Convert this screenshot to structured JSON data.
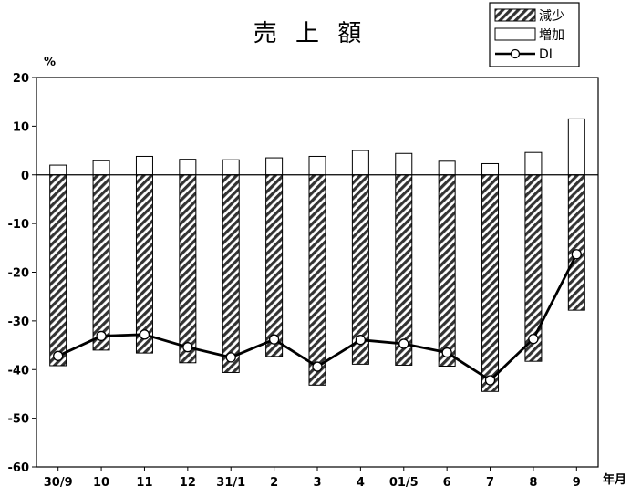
{
  "chart_data": {
    "type": "bar",
    "title": "売 上 額",
    "ylabel": "%",
    "xlabel": "年月",
    "ylim": [
      -60,
      20
    ],
    "yticks": [
      20,
      10,
      0,
      -10,
      -20,
      -30,
      -40,
      -50,
      -60
    ],
    "grid": false,
    "legend_position": "top-right",
    "categories": [
      "30/9",
      "10",
      "11",
      "12",
      "31/1",
      "2",
      "3",
      "4",
      "01/5",
      "6",
      "7",
      "8",
      "9"
    ],
    "series": [
      {
        "name": "減少",
        "kind": "bar",
        "pattern": "hatched",
        "values": [
          -39.2,
          -36.0,
          -36.6,
          -38.6,
          -40.6,
          -37.3,
          -43.2,
          -38.9,
          -39.1,
          -39.3,
          -44.5,
          -38.3,
          -27.8
        ]
      },
      {
        "name": "増加",
        "kind": "bar",
        "pattern": "open",
        "values": [
          2.0,
          2.9,
          3.8,
          3.2,
          3.1,
          3.5,
          3.8,
          5.0,
          4.4,
          2.8,
          2.3,
          4.6,
          11.5
        ]
      },
      {
        "name": "DI",
        "kind": "line",
        "marker": "circle",
        "values": [
          -37.2,
          -33.1,
          -32.8,
          -35.4,
          -37.5,
          -33.8,
          -39.4,
          -33.9,
          -34.7,
          -36.5,
          -42.2,
          -33.7,
          -16.3
        ]
      }
    ]
  }
}
